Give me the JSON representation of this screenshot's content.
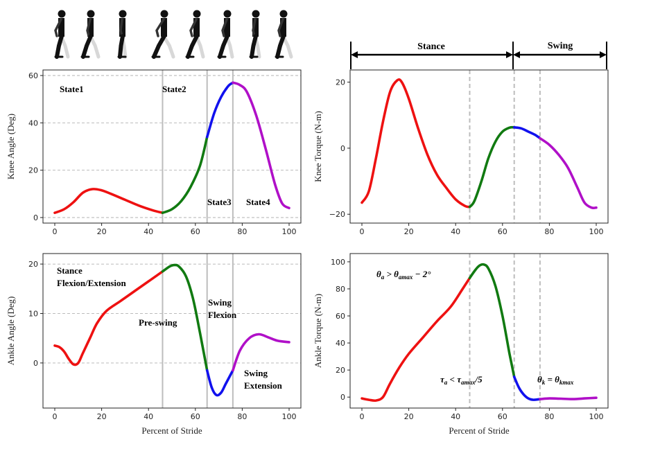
{
  "colors": {
    "state1": "#ee1111",
    "state2": "#117a11",
    "state3": "#1111ee",
    "state4": "#b010c8"
  },
  "phase_bar": {
    "stance_label": "Stance",
    "swing_label": "Swing"
  },
  "chart_data": [
    {
      "id": "knee-angle",
      "type": "line",
      "xlabel": "",
      "ylabel": "Knee Angle (Deg)",
      "xlim": [
        0,
        100
      ],
      "ylim": [
        0,
        60
      ],
      "xticks": [
        "0",
        "20",
        "40",
        "60",
        "80",
        "100"
      ],
      "yticks": [
        "0",
        "20",
        "40",
        "60"
      ],
      "ytick_values": [
        0,
        20,
        40,
        60
      ],
      "grid": "horizontal dashed",
      "phase_lines": [
        46,
        65,
        76
      ],
      "phase_line_style": "solid",
      "annotations": [
        "State1",
        "State2",
        "State3",
        "State4"
      ],
      "series": [
        {
          "color_key": "state1",
          "points": [
            [
              0,
              2
            ],
            [
              4,
              3.5
            ],
            [
              8,
              6.5
            ],
            [
              12,
              10.5
            ],
            [
              16,
              12
            ],
            [
              20,
              11.5
            ],
            [
              24,
              10
            ],
            [
              30,
              7.5
            ],
            [
              36,
              5
            ],
            [
              42,
              3
            ],
            [
              46,
              2
            ]
          ]
        },
        {
          "color_key": "state2",
          "points": [
            [
              46,
              2
            ],
            [
              50,
              3.5
            ],
            [
              54,
              7
            ],
            [
              58,
              13
            ],
            [
              62,
              22
            ],
            [
              65,
              34
            ]
          ]
        },
        {
          "color_key": "state3",
          "points": [
            [
              65,
              34
            ],
            [
              68,
              44
            ],
            [
              71,
              51
            ],
            [
              74,
              55.5
            ],
            [
              76,
              57
            ]
          ]
        },
        {
          "color_key": "state4",
          "points": [
            [
              76,
              57
            ],
            [
              79,
              56
            ],
            [
              82,
              53
            ],
            [
              86,
              43
            ],
            [
              90,
              29
            ],
            [
              94,
              14
            ],
            [
              97,
              6
            ],
            [
              100,
              4
            ]
          ]
        }
      ]
    },
    {
      "id": "knee-torque",
      "type": "line",
      "xlabel": "",
      "ylabel": "Knee Torque (N-m)",
      "xlim": [
        0,
        100
      ],
      "ylim": [
        -21,
        22
      ],
      "xticks": [
        "0",
        "20",
        "40",
        "60",
        "80",
        "100"
      ],
      "yticks": [
        "−20",
        "0",
        "20"
      ],
      "ytick_values": [
        -20,
        0,
        20
      ],
      "grid": "none",
      "phase_lines": [
        46,
        65,
        76
      ],
      "phase_line_style": "dashed",
      "series": [
        {
          "color_key": "state1",
          "points": [
            [
              0,
              -16.5
            ],
            [
              3,
              -13
            ],
            [
              6,
              -3
            ],
            [
              9,
              8
            ],
            [
              12,
              17
            ],
            [
              15,
              20.5
            ],
            [
              17,
              20
            ],
            [
              20,
              15
            ],
            [
              24,
              6
            ],
            [
              28,
              -2
            ],
            [
              32,
              -8
            ],
            [
              36,
              -12
            ],
            [
              40,
              -15.5
            ],
            [
              44,
              -17.5
            ],
            [
              46,
              -17.8
            ]
          ]
        },
        {
          "color_key": "state2",
          "points": [
            [
              46,
              -17.8
            ],
            [
              48,
              -16
            ],
            [
              51,
              -10
            ],
            [
              54,
              -3
            ],
            [
              57,
              2
            ],
            [
              60,
              5
            ],
            [
              63,
              6.2
            ],
            [
              65,
              6.3
            ]
          ]
        },
        {
          "color_key": "state3",
          "points": [
            [
              65,
              6.3
            ],
            [
              68,
              6
            ],
            [
              71,
              5
            ],
            [
              74,
              4
            ],
            [
              76,
              3
            ]
          ]
        },
        {
          "color_key": "state4",
          "points": [
            [
              76,
              3
            ],
            [
              80,
              1
            ],
            [
              84,
              -2
            ],
            [
              88,
              -6
            ],
            [
              92,
              -12
            ],
            [
              95,
              -16.5
            ],
            [
              98,
              -18
            ],
            [
              100,
              -18
            ]
          ]
        }
      ]
    },
    {
      "id": "ankle-angle",
      "type": "line",
      "xlabel": "Percent of Stride",
      "ylabel": "Ankle Angle (Deg)",
      "xlim": [
        0,
        100
      ],
      "ylim": [
        -8,
        21
      ],
      "xticks": [
        "0",
        "20",
        "40",
        "60",
        "80",
        "100"
      ],
      "yticks": [
        "0",
        "10",
        "20"
      ],
      "ytick_values": [
        0,
        10,
        20
      ],
      "grid": "horizontal dashed",
      "phase_lines": [
        46,
        65,
        76
      ],
      "phase_line_style": "solid",
      "annotations": [
        "Stance",
        "Flexion/Extension",
        "Pre-swing",
        "Swing",
        "Flexion",
        "Swing",
        "Extension"
      ],
      "series": [
        {
          "color_key": "state1",
          "points": [
            [
              0,
              3.5
            ],
            [
              2,
              3.2
            ],
            [
              4,
              2.3
            ],
            [
              6,
              0.8
            ],
            [
              8,
              -0.3
            ],
            [
              10,
              0
            ],
            [
              12,
              2
            ],
            [
              15,
              5
            ],
            [
              18,
              8
            ],
            [
              22,
              10.5
            ],
            [
              28,
              12.5
            ],
            [
              34,
              14.5
            ],
            [
              40,
              16.5
            ],
            [
              46,
              18.5
            ]
          ]
        },
        {
          "color_key": "state2",
          "points": [
            [
              46,
              18.5
            ],
            [
              49,
              19.5
            ],
            [
              51,
              19.8
            ],
            [
              53,
              19.5
            ],
            [
              56,
              17.5
            ],
            [
              59,
              13
            ],
            [
              62,
              6
            ],
            [
              65,
              -1.5
            ]
          ]
        },
        {
          "color_key": "state3",
          "points": [
            [
              65,
              -1.5
            ],
            [
              67,
              -5
            ],
            [
              69,
              -6.5
            ],
            [
              71,
              -6
            ],
            [
              73,
              -4.2
            ],
            [
              76,
              -1.5
            ]
          ]
        },
        {
          "color_key": "state4",
          "points": [
            [
              76,
              -1.5
            ],
            [
              79,
              2.5
            ],
            [
              83,
              5
            ],
            [
              87,
              5.8
            ],
            [
              91,
              5.2
            ],
            [
              95,
              4.5
            ],
            [
              100,
              4.2
            ]
          ]
        }
      ]
    },
    {
      "id": "ankle-torque",
      "type": "line",
      "xlabel": "Percent of Stride",
      "ylabel": "Ankle Torque (N-m)",
      "xlim": [
        0,
        100
      ],
      "ylim": [
        -4,
        102
      ],
      "xticks": [
        "0",
        "20",
        "40",
        "60",
        "80",
        "100"
      ],
      "yticks": [
        "0",
        "20",
        "40",
        "60",
        "80",
        "100"
      ],
      "ytick_values": [
        0,
        20,
        40,
        60,
        80,
        100
      ],
      "grid": "none",
      "phase_lines": [
        46,
        65,
        76
      ],
      "phase_line_style": "dashed",
      "series": [
        {
          "color_key": "state1",
          "points": [
            [
              0,
              -1
            ],
            [
              3,
              -2
            ],
            [
              6,
              -2.5
            ],
            [
              9,
              0
            ],
            [
              12,
              10
            ],
            [
              16,
              22
            ],
            [
              20,
              32
            ],
            [
              26,
              44
            ],
            [
              32,
              56
            ],
            [
              38,
              67
            ],
            [
              43,
              80
            ],
            [
              46,
              88
            ]
          ]
        },
        {
          "color_key": "state2",
          "points": [
            [
              46,
              88
            ],
            [
              48,
              93
            ],
            [
              50,
              97
            ],
            [
              52,
              98
            ],
            [
              54,
              95
            ],
            [
              57,
              82
            ],
            [
              60,
              60
            ],
            [
              63,
              32
            ],
            [
              65,
              15
            ]
          ]
        },
        {
          "color_key": "state3",
          "points": [
            [
              65,
              15
            ],
            [
              67,
              7
            ],
            [
              69,
              2
            ],
            [
              71,
              -1
            ],
            [
              73,
              -2
            ],
            [
              76,
              -1.5
            ]
          ]
        },
        {
          "color_key": "state4",
          "points": [
            [
              76,
              -1.5
            ],
            [
              80,
              -1
            ],
            [
              85,
              -1.2
            ],
            [
              90,
              -1.5
            ],
            [
              95,
              -1
            ],
            [
              100,
              -0.5
            ]
          ]
        }
      ]
    }
  ],
  "notes": {
    "state1": "State1",
    "state2": "State2",
    "state3": "State3",
    "state4": "State4",
    "stance_label": "Stance",
    "flex_ext_label": "Flexion/Extension",
    "preswing_label": "Pre-swing",
    "swing_flex_1": "Swing",
    "swing_flex_2": "Flexion",
    "swing_ext_1": "Swing",
    "swing_ext_2": "Extension",
    "cond1": "θa > θamax − 2°",
    "cond1_parts": [
      "θ",
      "a",
      " > θ",
      "amax",
      " − 2°"
    ],
    "cond2_parts": [
      "τ",
      "a",
      " < τ",
      "amax",
      "/5"
    ],
    "cond3_parts": [
      "θ",
      "k",
      " = θ",
      "kmax"
    ]
  }
}
